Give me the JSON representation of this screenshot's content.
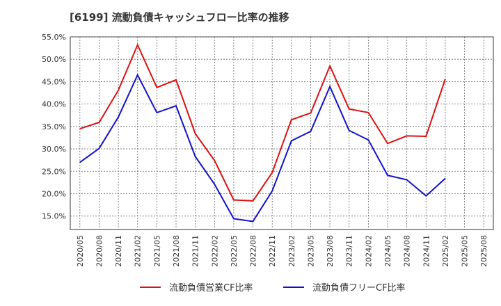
{
  "chart_data": {
    "type": "line",
    "title": "[6199]  流動負債キャッシュフロー比率の推移",
    "xlabel": "",
    "ylabel": "",
    "ylim": [
      12.0,
      55.0
    ],
    "yticks": [
      15.0,
      20.0,
      25.0,
      30.0,
      35.0,
      40.0,
      45.0,
      50.0,
      55.0
    ],
    "ytick_labels": [
      "15.0%",
      "20.0%",
      "25.0%",
      "30.0%",
      "35.0%",
      "40.0%",
      "45.0%",
      "50.0%",
      "55.0%"
    ],
    "x": [
      "2020/05",
      "2020/08",
      "2020/11",
      "2021/02",
      "2021/05",
      "2021/08",
      "2021/11",
      "2022/02",
      "2022/05",
      "2022/08",
      "2022/11",
      "2023/02",
      "2023/05",
      "2023/08",
      "2023/11",
      "2024/02",
      "2024/05",
      "2024/08",
      "2024/11",
      "2025/02",
      "2025/05",
      "2025/08"
    ],
    "grid": true,
    "legend_position": "bottom",
    "series": [
      {
        "name": "流動負債営業CF比率",
        "color": "#dd1111",
        "values": [
          34.5,
          35.9,
          43.1,
          53.2,
          43.7,
          45.4,
          33.4,
          27.4,
          18.6,
          18.4,
          24.7,
          36.5,
          38.0,
          48.5,
          38.9,
          38.1,
          31.2,
          32.9,
          32.8,
          45.6,
          null,
          null
        ]
      },
      {
        "name": "流動負債フリーCF比率",
        "color": "#1111cc",
        "values": [
          27.0,
          30.1,
          37.1,
          46.5,
          38.1,
          39.6,
          28.3,
          22.1,
          14.4,
          13.8,
          20.6,
          31.8,
          33.9,
          43.9,
          34.1,
          32.0,
          24.1,
          23.1,
          19.5,
          23.4,
          null,
          null
        ]
      }
    ]
  }
}
